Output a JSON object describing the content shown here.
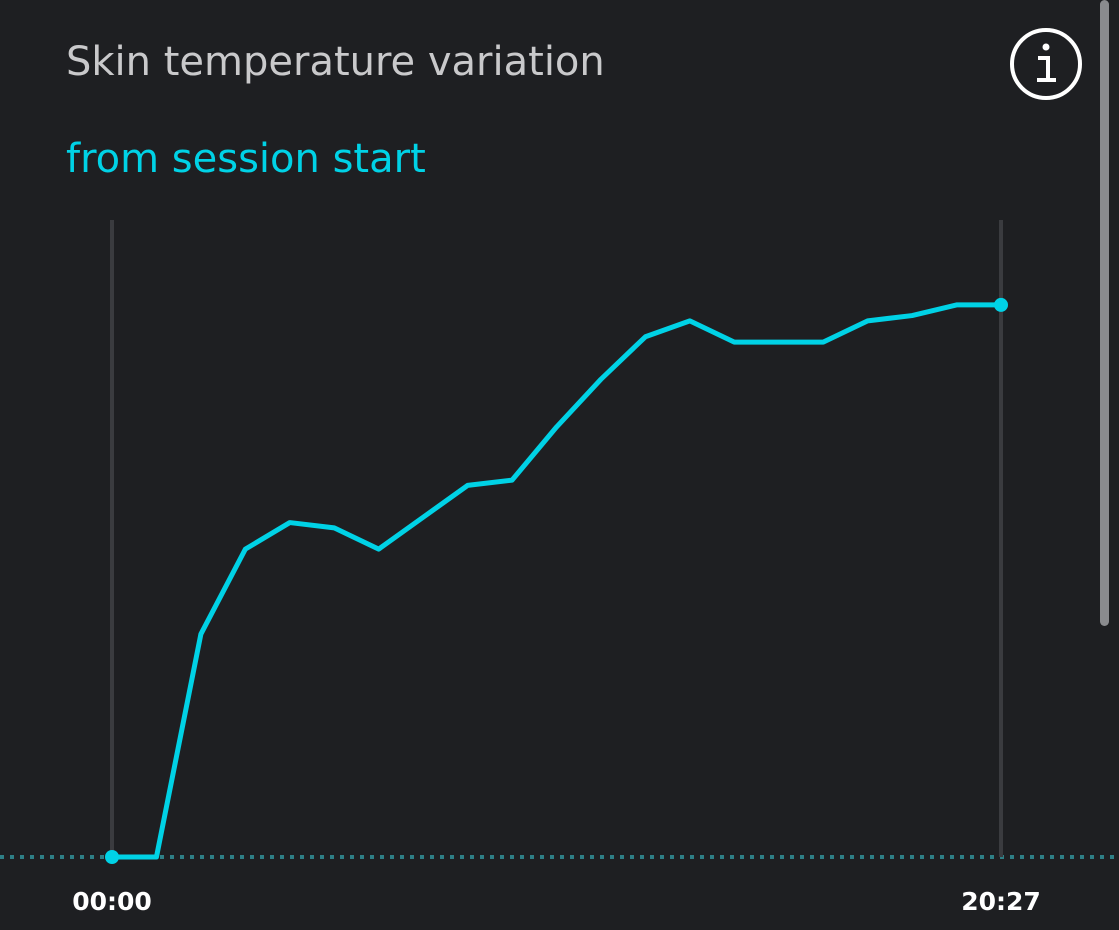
{
  "chart_data": {
    "type": "line",
    "title": "Skin temperature variation",
    "subtitle": "from session start",
    "categories": [
      "00:00",
      null,
      null,
      null,
      null,
      null,
      null,
      null,
      null,
      null,
      null,
      null,
      null,
      null,
      null,
      null,
      null,
      null,
      null,
      null,
      "20:27"
    ],
    "values": [
      0,
      0,
      42,
      58,
      63,
      62,
      58,
      64,
      70,
      71,
      81,
      90,
      98,
      101,
      97,
      97,
      97,
      101,
      102,
      104,
      104
    ],
    "color": "#00d2e6",
    "ylim": [
      0,
      120
    ]
  }
}
